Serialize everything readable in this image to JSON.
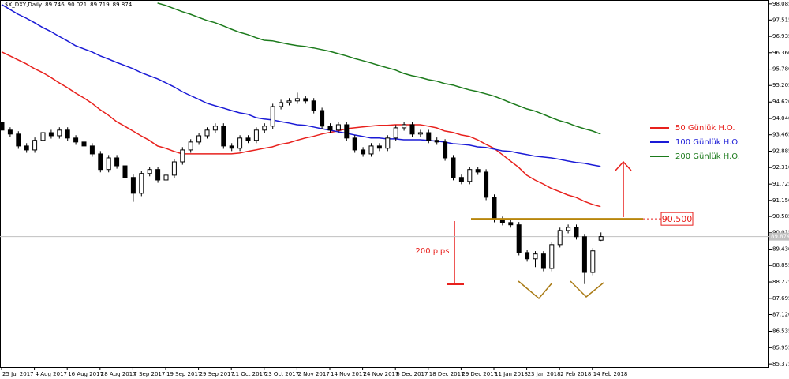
{
  "chart_data": {
    "type": "candlestick",
    "title": "$X_DXY,Daily",
    "categories": [
      "25 Jul 2017",
      null,
      null,
      null,
      "4 Aug 2017",
      null,
      null,
      null,
      "16 Aug 2017",
      null,
      null,
      null,
      "28 Aug 2017",
      null,
      null,
      null,
      "7 Sep 2017",
      null,
      null,
      null,
      "19 Sep 2017",
      null,
      null,
      null,
      "29 Sep 2017",
      null,
      null,
      null,
      "11 Oct 2017",
      null,
      null,
      null,
      "23 Oct 2017",
      null,
      null,
      null,
      "2 Nov 2017",
      null,
      null,
      null,
      "14 Nov 2017",
      null,
      null,
      null,
      "24 Nov 2017",
      null,
      null,
      null,
      "6 Dec 2017",
      null,
      null,
      null,
      "18 Dec 2017",
      null,
      null,
      null,
      "29 Dec 2017",
      null,
      null,
      null,
      "11 Jan 2018",
      null,
      null,
      null,
      "23 Jan 2018",
      null,
      null,
      null,
      "2 Feb 2018",
      null,
      null,
      null,
      "14 Feb 2018",
      null
    ],
    "open": [
      93.9,
      93.63,
      93.49,
      93.07,
      92.93,
      93.27,
      93.54,
      93.43,
      93.63,
      93.35,
      93.21,
      93.07,
      92.79,
      92.24,
      92.65,
      92.37,
      91.96,
      91.4,
      92.1,
      92.24,
      91.87,
      92.04,
      92.51,
      92.93,
      93.21,
      93.43,
      93.63,
      93.77,
      93.07,
      92.99,
      93.35,
      93.27,
      93.63,
      93.77,
      94.46,
      94.6,
      94.66,
      94.74,
      94.66,
      94.32,
      93.77,
      93.63,
      93.82,
      93.35,
      92.93,
      92.79,
      93.07,
      92.99,
      93.35,
      93.71,
      93.82,
      93.49,
      93.54,
      93.27,
      93.21,
      92.65,
      91.96,
      91.82,
      92.24,
      92.15,
      91.26,
      90.48,
      90.37,
      90.29,
      89.31,
      89.09,
      89.26,
      88.75,
      89.59,
      90.09,
      90.2,
      89.87,
      88.61,
      89.746
    ],
    "high": [
      94.0,
      93.73,
      93.59,
      93.17,
      93.37,
      93.64,
      93.64,
      93.73,
      93.73,
      93.45,
      93.31,
      93.17,
      92.89,
      92.75,
      92.75,
      92.47,
      92.06,
      92.2,
      92.34,
      92.34,
      92.14,
      92.61,
      93.03,
      93.31,
      93.53,
      93.73,
      93.87,
      93.87,
      93.17,
      93.45,
      93.45,
      93.73,
      93.87,
      94.56,
      94.7,
      94.76,
      94.95,
      94.84,
      94.76,
      94.42,
      93.87,
      93.92,
      93.92,
      93.45,
      93.03,
      93.17,
      93.17,
      93.45,
      93.81,
      93.92,
      93.92,
      93.64,
      93.64,
      93.37,
      93.31,
      92.75,
      92.06,
      92.34,
      92.34,
      92.25,
      91.36,
      90.58,
      90.47,
      90.39,
      89.41,
      89.36,
      89.36,
      89.69,
      90.19,
      90.3,
      90.3,
      89.97,
      89.47,
      90.021
    ],
    "low": [
      93.53,
      93.39,
      92.97,
      92.83,
      92.83,
      93.17,
      93.33,
      93.33,
      93.25,
      93.11,
      92.97,
      92.69,
      92.14,
      92.14,
      92.27,
      91.86,
      91.1,
      91.3,
      92.0,
      91.77,
      91.77,
      91.94,
      92.41,
      92.83,
      93.11,
      93.33,
      93.53,
      92.97,
      92.89,
      92.89,
      93.17,
      93.17,
      93.53,
      93.67,
      94.36,
      94.5,
      94.56,
      94.56,
      94.22,
      93.67,
      93.53,
      93.53,
      93.25,
      92.83,
      92.69,
      92.69,
      92.89,
      92.89,
      93.25,
      93.61,
      93.39,
      93.39,
      93.17,
      93.11,
      92.55,
      91.86,
      91.72,
      91.72,
      92.05,
      91.16,
      90.38,
      90.27,
      90.19,
      89.21,
      88.99,
      88.8,
      88.65,
      88.65,
      89.49,
      89.99,
      89.77,
      88.2,
      88.51,
      89.719
    ],
    "close": [
      93.63,
      93.49,
      93.07,
      92.93,
      93.27,
      93.54,
      93.43,
      93.63,
      93.35,
      93.21,
      93.07,
      92.79,
      92.24,
      92.65,
      92.37,
      91.96,
      91.4,
      92.1,
      92.24,
      91.87,
      92.04,
      92.51,
      92.93,
      93.21,
      93.43,
      93.63,
      93.77,
      93.07,
      92.99,
      93.35,
      93.27,
      93.63,
      93.77,
      94.46,
      94.6,
      94.66,
      94.74,
      94.66,
      94.32,
      93.77,
      93.63,
      93.82,
      93.35,
      92.93,
      92.79,
      93.07,
      92.99,
      93.35,
      93.71,
      93.82,
      93.49,
      93.54,
      93.27,
      93.21,
      92.65,
      91.96,
      91.82,
      92.24,
      92.15,
      91.26,
      90.48,
      90.37,
      90.29,
      89.31,
      89.09,
      89.26,
      88.75,
      89.59,
      90.09,
      90.2,
      89.87,
      88.61,
      89.37,
      89.874
    ],
    "up_color": "#ffffff",
    "down_color": "#000000",
    "series": [
      {
        "name": "50 Günlük H.O.",
        "color": "#e8211d",
        "values": [
          96.39,
          96.25,
          96.11,
          95.97,
          95.8,
          95.66,
          95.49,
          95.3,
          95.13,
          94.94,
          94.77,
          94.58,
          94.35,
          94.16,
          93.93,
          93.77,
          93.6,
          93.43,
          93.27,
          93.07,
          92.99,
          92.88,
          92.79,
          92.79,
          92.79,
          92.79,
          92.79,
          92.79,
          92.79,
          92.82,
          92.88,
          92.93,
          92.99,
          93.04,
          93.13,
          93.18,
          93.27,
          93.35,
          93.41,
          93.49,
          93.55,
          93.6,
          93.68,
          93.71,
          93.74,
          93.77,
          93.8,
          93.8,
          93.82,
          93.82,
          93.82,
          93.82,
          93.77,
          93.71,
          93.6,
          93.55,
          93.46,
          93.41,
          93.29,
          93.13,
          92.99,
          92.77,
          92.54,
          92.32,
          92.04,
          91.87,
          91.73,
          91.57,
          91.46,
          91.34,
          91.26,
          91.12,
          91.01,
          90.93
        ]
      },
      {
        "name": "100 Günlük H.O.",
        "color": "#1a1ad6",
        "values": [
          98.06,
          97.89,
          97.72,
          97.58,
          97.42,
          97.25,
          97.11,
          96.94,
          96.78,
          96.61,
          96.5,
          96.39,
          96.25,
          96.14,
          96.02,
          95.91,
          95.8,
          95.66,
          95.55,
          95.44,
          95.3,
          95.16,
          94.99,
          94.85,
          94.72,
          94.58,
          94.49,
          94.41,
          94.32,
          94.24,
          94.19,
          94.07,
          94.02,
          93.99,
          93.93,
          93.88,
          93.82,
          93.8,
          93.74,
          93.68,
          93.63,
          93.57,
          93.52,
          93.46,
          93.41,
          93.35,
          93.35,
          93.32,
          93.32,
          93.29,
          93.29,
          93.29,
          93.27,
          93.24,
          93.21,
          93.15,
          93.13,
          93.1,
          93.04,
          93.02,
          92.96,
          92.9,
          92.88,
          92.82,
          92.77,
          92.71,
          92.68,
          92.65,
          92.6,
          92.54,
          92.49,
          92.46,
          92.4,
          92.35
        ]
      },
      {
        "name": "200 Günlük H.O.",
        "color": "#1b7a1b",
        "values": [
          null,
          null,
          null,
          null,
          null,
          null,
          null,
          null,
          null,
          null,
          null,
          null,
          null,
          null,
          null,
          null,
          null,
          null,
          null,
          98.11,
          98.03,
          97.92,
          97.81,
          97.72,
          97.61,
          97.5,
          97.42,
          97.31,
          97.19,
          97.08,
          97.0,
          96.89,
          96.8,
          96.78,
          96.72,
          96.66,
          96.61,
          96.58,
          96.53,
          96.47,
          96.41,
          96.33,
          96.25,
          96.16,
          96.08,
          96.0,
          95.91,
          95.83,
          95.75,
          95.63,
          95.55,
          95.49,
          95.41,
          95.36,
          95.27,
          95.22,
          95.13,
          95.05,
          94.99,
          94.91,
          94.83,
          94.72,
          94.6,
          94.49,
          94.38,
          94.3,
          94.19,
          94.07,
          93.96,
          93.88,
          93.77,
          93.68,
          93.6,
          93.49
        ]
      }
    ],
    "ylim": [
      85.24,
      98.22
    ],
    "yticks": [
      98.085,
      97.515,
      96.935,
      {
        "value": 96.36,
        "label": "96.360"
      },
      {
        "value": 95.78,
        "label": "95.780"
      },
      95.205,
      {
        "value": 94.62,
        "label": "94.620"
      },
      {
        "value": 94.04,
        "label": "94.040"
      },
      93.465,
      92.885,
      {
        "value": 92.31,
        "label": "92.310"
      },
      91.725,
      {
        "value": 91.15,
        "label": "91.150"
      },
      90.585,
      90.015,
      {
        "value": 89.43,
        "label": "89.430"
      },
      88.855,
      88.275,
      87.695,
      {
        "value": 87.12,
        "label": "87.120"
      },
      86.535,
      85.955,
      85.375
    ],
    "level": {
      "value": 90.5,
      "label": "90.500",
      "color": "#b8860b"
    },
    "annotation": "200 pips",
    "annotation_color": "#e8211d",
    "grid": false
  }
}
